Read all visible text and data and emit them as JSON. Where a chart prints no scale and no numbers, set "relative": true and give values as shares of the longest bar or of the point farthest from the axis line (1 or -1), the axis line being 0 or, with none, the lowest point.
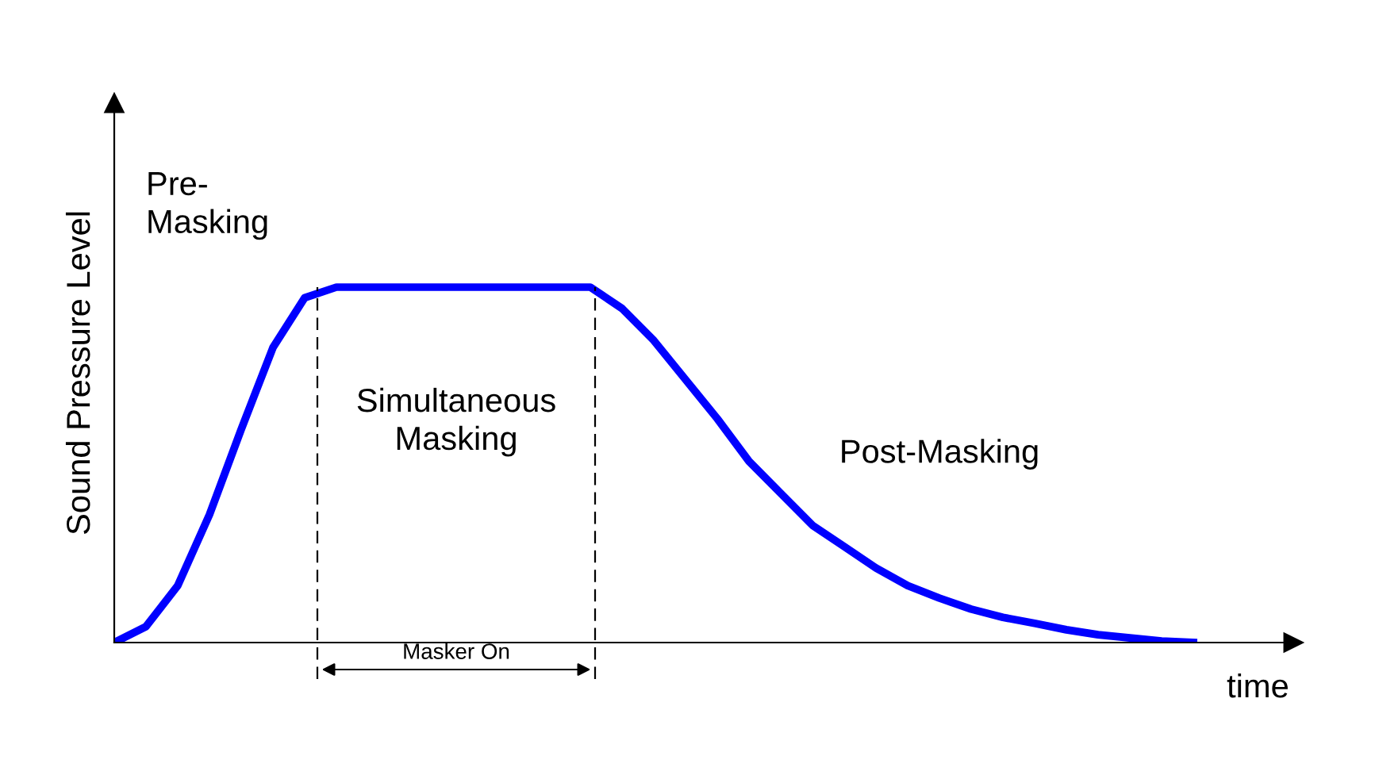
{
  "chart_data": {
    "type": "line",
    "relative": true,
    "ylabel": "Sound Pressure Level",
    "xlabel": "time",
    "categories": [
      null,
      null,
      null,
      null,
      null,
      null,
      null,
      null,
      null,
      null,
      null,
      null,
      null,
      null,
      null,
      null,
      null,
      null,
      null,
      null,
      null,
      null,
      null,
      null,
      null,
      null,
      null,
      null,
      null,
      null,
      null,
      null,
      null,
      null,
      null
    ],
    "series": [
      {
        "color": "#0000ff",
        "values": [
          0,
          0.045,
          0.16,
          0.36,
          0.6,
          0.83,
          0.97,
          1,
          1,
          1,
          1,
          1,
          1,
          1,
          1,
          1,
          0.94,
          0.85,
          0.74,
          0.63,
          0.51,
          0.42,
          0.33,
          0.27,
          0.21,
          0.16,
          0.125,
          0.094,
          0.071,
          0.054,
          0.036,
          0.022,
          0.013,
          0.004,
          0
        ]
      }
    ],
    "annotations": [
      "Pre-\nMasking",
      "Simultaneous\nMasking",
      "Post-Masking",
      "Masker On"
    ],
    "marker": "none",
    "line_style": "solid",
    "legend": false
  }
}
